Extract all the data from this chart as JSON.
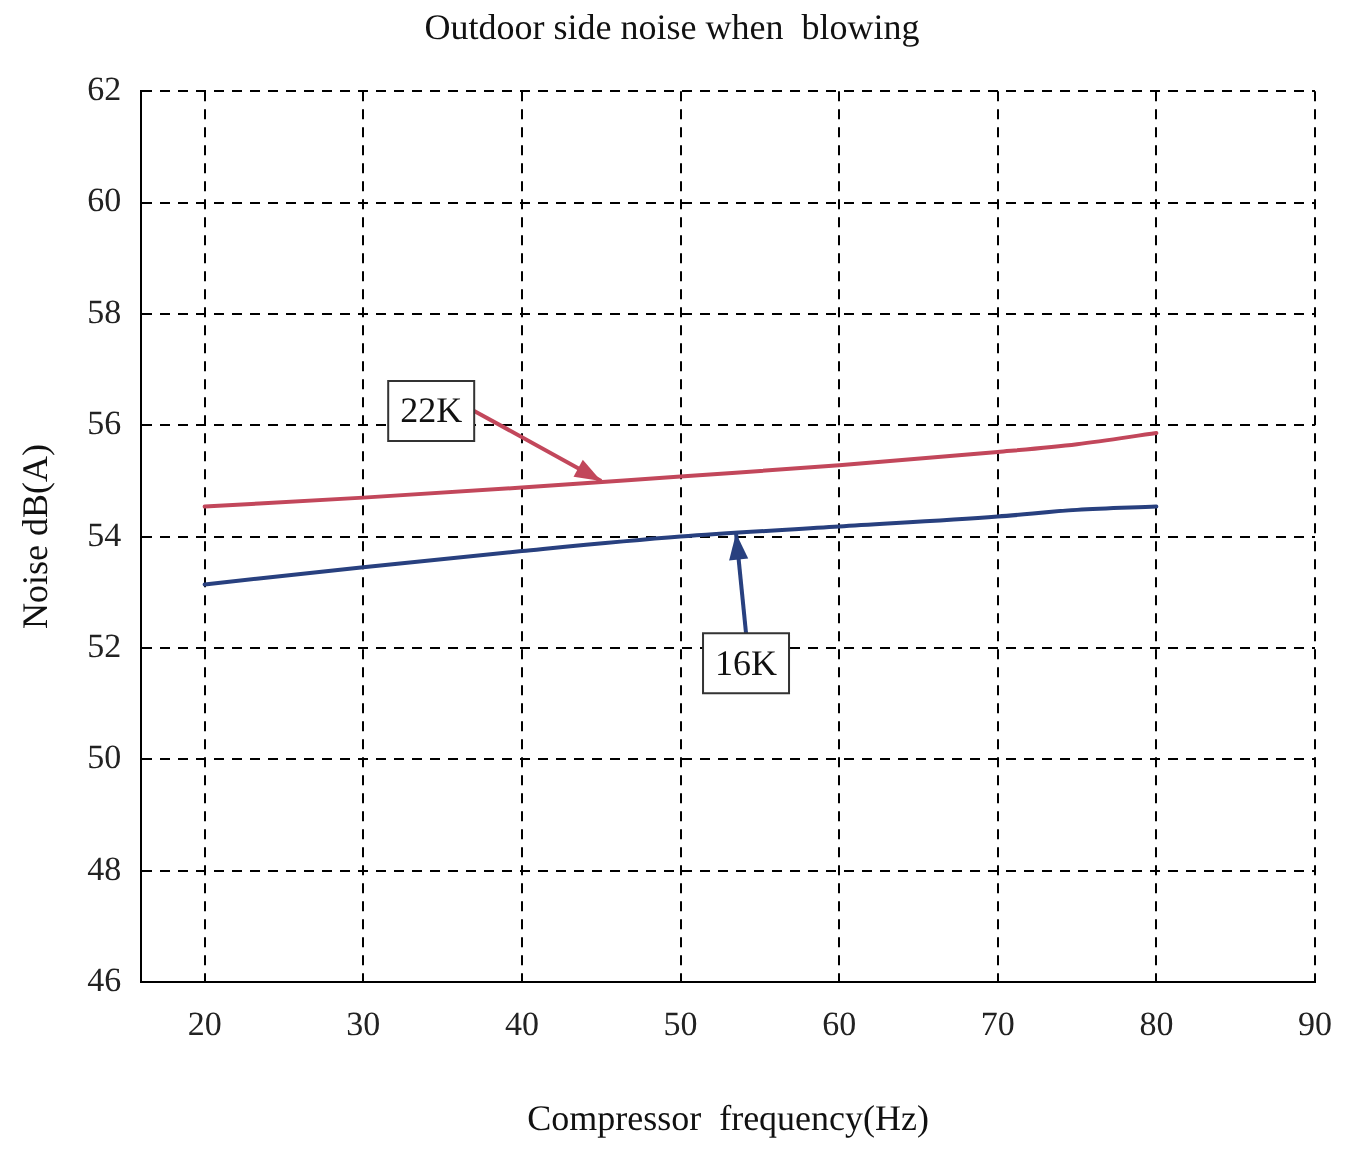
{
  "chart_data": {
    "type": "line",
    "title": "Outdoor side noise when  blowing",
    "xlabel": "Compressor  frequency(Hz)",
    "ylabel": "Noise dB(A)",
    "x": [
      20,
      30,
      40,
      50,
      60,
      70,
      75,
      80
    ],
    "series": [
      {
        "color": "#c2475b",
        "values": [
          54.54,
          54.7,
          54.88,
          55.08,
          55.28,
          55.52,
          55.66,
          55.86
        ]
      },
      {
        "color": "#28407f",
        "values": [
          53.14,
          53.45,
          53.74,
          54.0,
          54.18,
          54.36,
          54.48,
          54.54
        ]
      }
    ],
    "xlim": [
      16,
      90
    ],
    "xticks": [
      20,
      30,
      40,
      50,
      60,
      70,
      80,
      90
    ],
    "ylim": [
      46,
      62
    ],
    "yticks": [
      46,
      48,
      50,
      52,
      54,
      56,
      58,
      60,
      62
    ],
    "grid": true,
    "legend": false,
    "marker": "none",
    "line_style": "solid",
    "annotations": [
      {
        "text": "22K",
        "x": 45,
        "y": 55.0
      },
      {
        "text": "16K",
        "x": 53.5,
        "y": 54.06
      }
    ]
  }
}
